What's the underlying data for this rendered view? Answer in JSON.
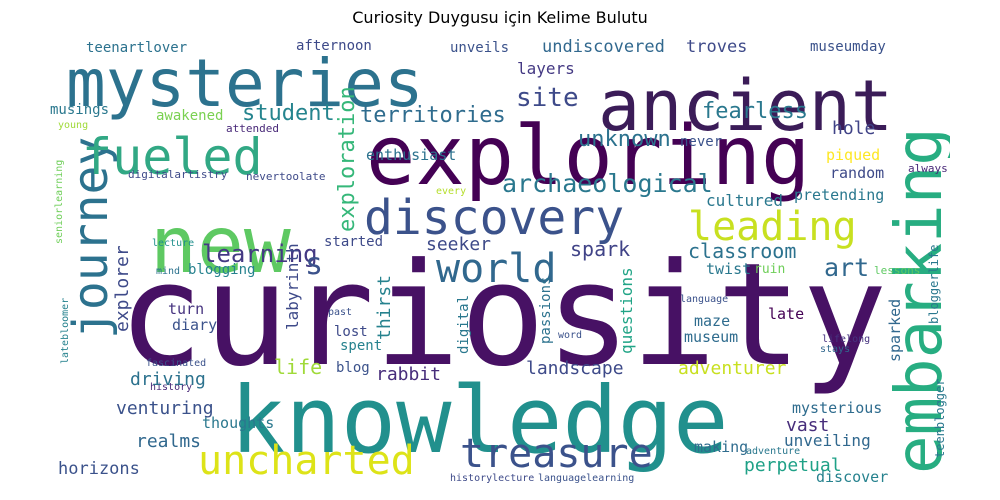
{
  "chart_data": {
    "type": "wordcloud",
    "title": "Curiosity Duygusu için Kelime Bulutu",
    "colormap": "viridis",
    "words": [
      {
        "text": "curiosity",
        "color": "#471164"
      },
      {
        "text": "knowledge",
        "color": "#21908d"
      },
      {
        "text": "exploring",
        "color": "#440154"
      },
      {
        "text": "new",
        "color": "#5ec962"
      },
      {
        "text": "ancient",
        "color": "#3b1c58"
      },
      {
        "text": "mysteries",
        "color": "#2c728e"
      },
      {
        "text": "discovery",
        "color": "#3b528b"
      },
      {
        "text": "embarking",
        "color": "#27ad81"
      },
      {
        "text": "journey",
        "color": "#2c728e"
      },
      {
        "text": "fueled",
        "color": "#31a884"
      },
      {
        "text": "treasure",
        "color": "#3b528b"
      },
      {
        "text": "uncharted",
        "color": "#dde318"
      },
      {
        "text": "leading",
        "color": "#c8e020"
      },
      {
        "text": "world",
        "color": "#31688e"
      },
      {
        "text": "archaeological",
        "color": "#2a788e"
      },
      {
        "text": "site",
        "color": "#3e4a89"
      },
      {
        "text": "territories",
        "color": "#2f6c8e"
      },
      {
        "text": "unknown",
        "color": "#2c728e"
      },
      {
        "text": "fearless",
        "color": "#2a788e"
      },
      {
        "text": "student",
        "color": "#25848e"
      },
      {
        "text": "learning",
        "color": "#443983"
      },
      {
        "text": "s",
        "color": "#3b528b"
      },
      {
        "text": "art",
        "color": "#31688e"
      },
      {
        "text": "classroom",
        "color": "#2c728e"
      },
      {
        "text": "exploration",
        "color": "#35b779"
      },
      {
        "text": "undiscovered",
        "color": "#31688e"
      },
      {
        "text": "troves",
        "color": "#3e4a89"
      },
      {
        "text": "layers",
        "color": "#443983"
      },
      {
        "text": "unveils",
        "color": "#3b528b"
      },
      {
        "text": "afternoon",
        "color": "#3e4a89"
      },
      {
        "text": "teenartlover",
        "color": "#2c728e"
      },
      {
        "text": "museumday",
        "color": "#3b528b"
      },
      {
        "text": "awakened",
        "color": "#7ad151"
      },
      {
        "text": "musings",
        "color": "#2a788e"
      },
      {
        "text": "young",
        "color": "#a0da39"
      },
      {
        "text": "attended",
        "color": "#482878"
      },
      {
        "text": "seniorlearning",
        "color": "#6ece58"
      },
      {
        "text": "digitalartistry",
        "color": "#3e4a89"
      },
      {
        "text": "nevertoolate",
        "color": "#3e4a89"
      },
      {
        "text": "enthusiast",
        "color": "#2c728e"
      },
      {
        "text": "every",
        "color": "#b5de2b"
      },
      {
        "text": "cultured",
        "color": "#2a788e"
      },
      {
        "text": "hole",
        "color": "#404387"
      },
      {
        "text": "never",
        "color": "#3b528b"
      },
      {
        "text": "random",
        "color": "#3e4a89"
      },
      {
        "text": "pretending",
        "color": "#2a788e"
      },
      {
        "text": "piqued",
        "color": "#fde725"
      },
      {
        "text": "always",
        "color": "#482878"
      },
      {
        "text": "bloggerlife",
        "color": "#2a788e"
      },
      {
        "text": "lessons",
        "color": "#5ec962"
      },
      {
        "text": "lecture",
        "color": "#21908d"
      },
      {
        "text": "mind",
        "color": "#2c728e"
      },
      {
        "text": "blogging",
        "color": "#26828e"
      },
      {
        "text": "started",
        "color": "#3e4a89"
      },
      {
        "text": "seeker",
        "color": "#3e4a89"
      },
      {
        "text": "spark",
        "color": "#404387"
      },
      {
        "text": "thirst",
        "color": "#26828e"
      },
      {
        "text": "labyrinth",
        "color": "#3e4a89"
      },
      {
        "text": "explorer",
        "color": "#3e4a89"
      },
      {
        "text": "turn",
        "color": "#46337f"
      },
      {
        "text": "diary",
        "color": "#3b528b"
      },
      {
        "text": "past",
        "color": "#3b528b"
      },
      {
        "text": "lost",
        "color": "#3e4a89"
      },
      {
        "text": "spent",
        "color": "#26828e"
      },
      {
        "text": "digital",
        "color": "#2a788e"
      },
      {
        "text": "passions",
        "color": "#2c728e"
      },
      {
        "text": "questions",
        "color": "#20a486"
      },
      {
        "text": "word",
        "color": "#3b528b"
      },
      {
        "text": "twist",
        "color": "#2a788e"
      },
      {
        "text": "ruin",
        "color": "#6ece58"
      },
      {
        "text": "language",
        "color": "#3b528b"
      },
      {
        "text": "late",
        "color": "#440154"
      },
      {
        "text": "lifelong",
        "color": "#46337f"
      },
      {
        "text": "maze",
        "color": "#2f6c8e"
      },
      {
        "text": "museum",
        "color": "#2f6c8e"
      },
      {
        "text": "sparked",
        "color": "#31688e"
      },
      {
        "text": "stays",
        "color": "#31688e"
      },
      {
        "text": "latebloomer",
        "color": "#26828e"
      },
      {
        "text": "fascinated",
        "color": "#3b528b"
      },
      {
        "text": "history",
        "color": "#482878"
      },
      {
        "text": "life",
        "color": "#a0da39"
      },
      {
        "text": "blog",
        "color": "#3b528b"
      },
      {
        "text": "rabbit",
        "color": "#472d7b"
      },
      {
        "text": "landscape",
        "color": "#3e4a89"
      },
      {
        "text": "adventurer",
        "color": "#c8e020"
      },
      {
        "text": "driving",
        "color": "#2c728e"
      },
      {
        "text": "venturing",
        "color": "#3b528b"
      },
      {
        "text": "thoughts",
        "color": "#2a788e"
      },
      {
        "text": "realms",
        "color": "#31688e"
      },
      {
        "text": "mysterious",
        "color": "#2f6c8e"
      },
      {
        "text": "vast",
        "color": "#472d7b"
      },
      {
        "text": "unveiling",
        "color": "#31688e"
      },
      {
        "text": "perpetual",
        "color": "#1fa187"
      },
      {
        "text": "teenblogger",
        "color": "#2a788e"
      },
      {
        "text": "adventure",
        "color": "#2a788e"
      },
      {
        "text": "making",
        "color": "#2f6c8e"
      },
      {
        "text": "horizons",
        "color": "#3b528b"
      },
      {
        "text": "historylecture",
        "color": "#3e4a89"
      },
      {
        "text": "languagelearning",
        "color": "#3b528b"
      },
      {
        "text": "discover",
        "color": "#26828e"
      }
    ]
  }
}
